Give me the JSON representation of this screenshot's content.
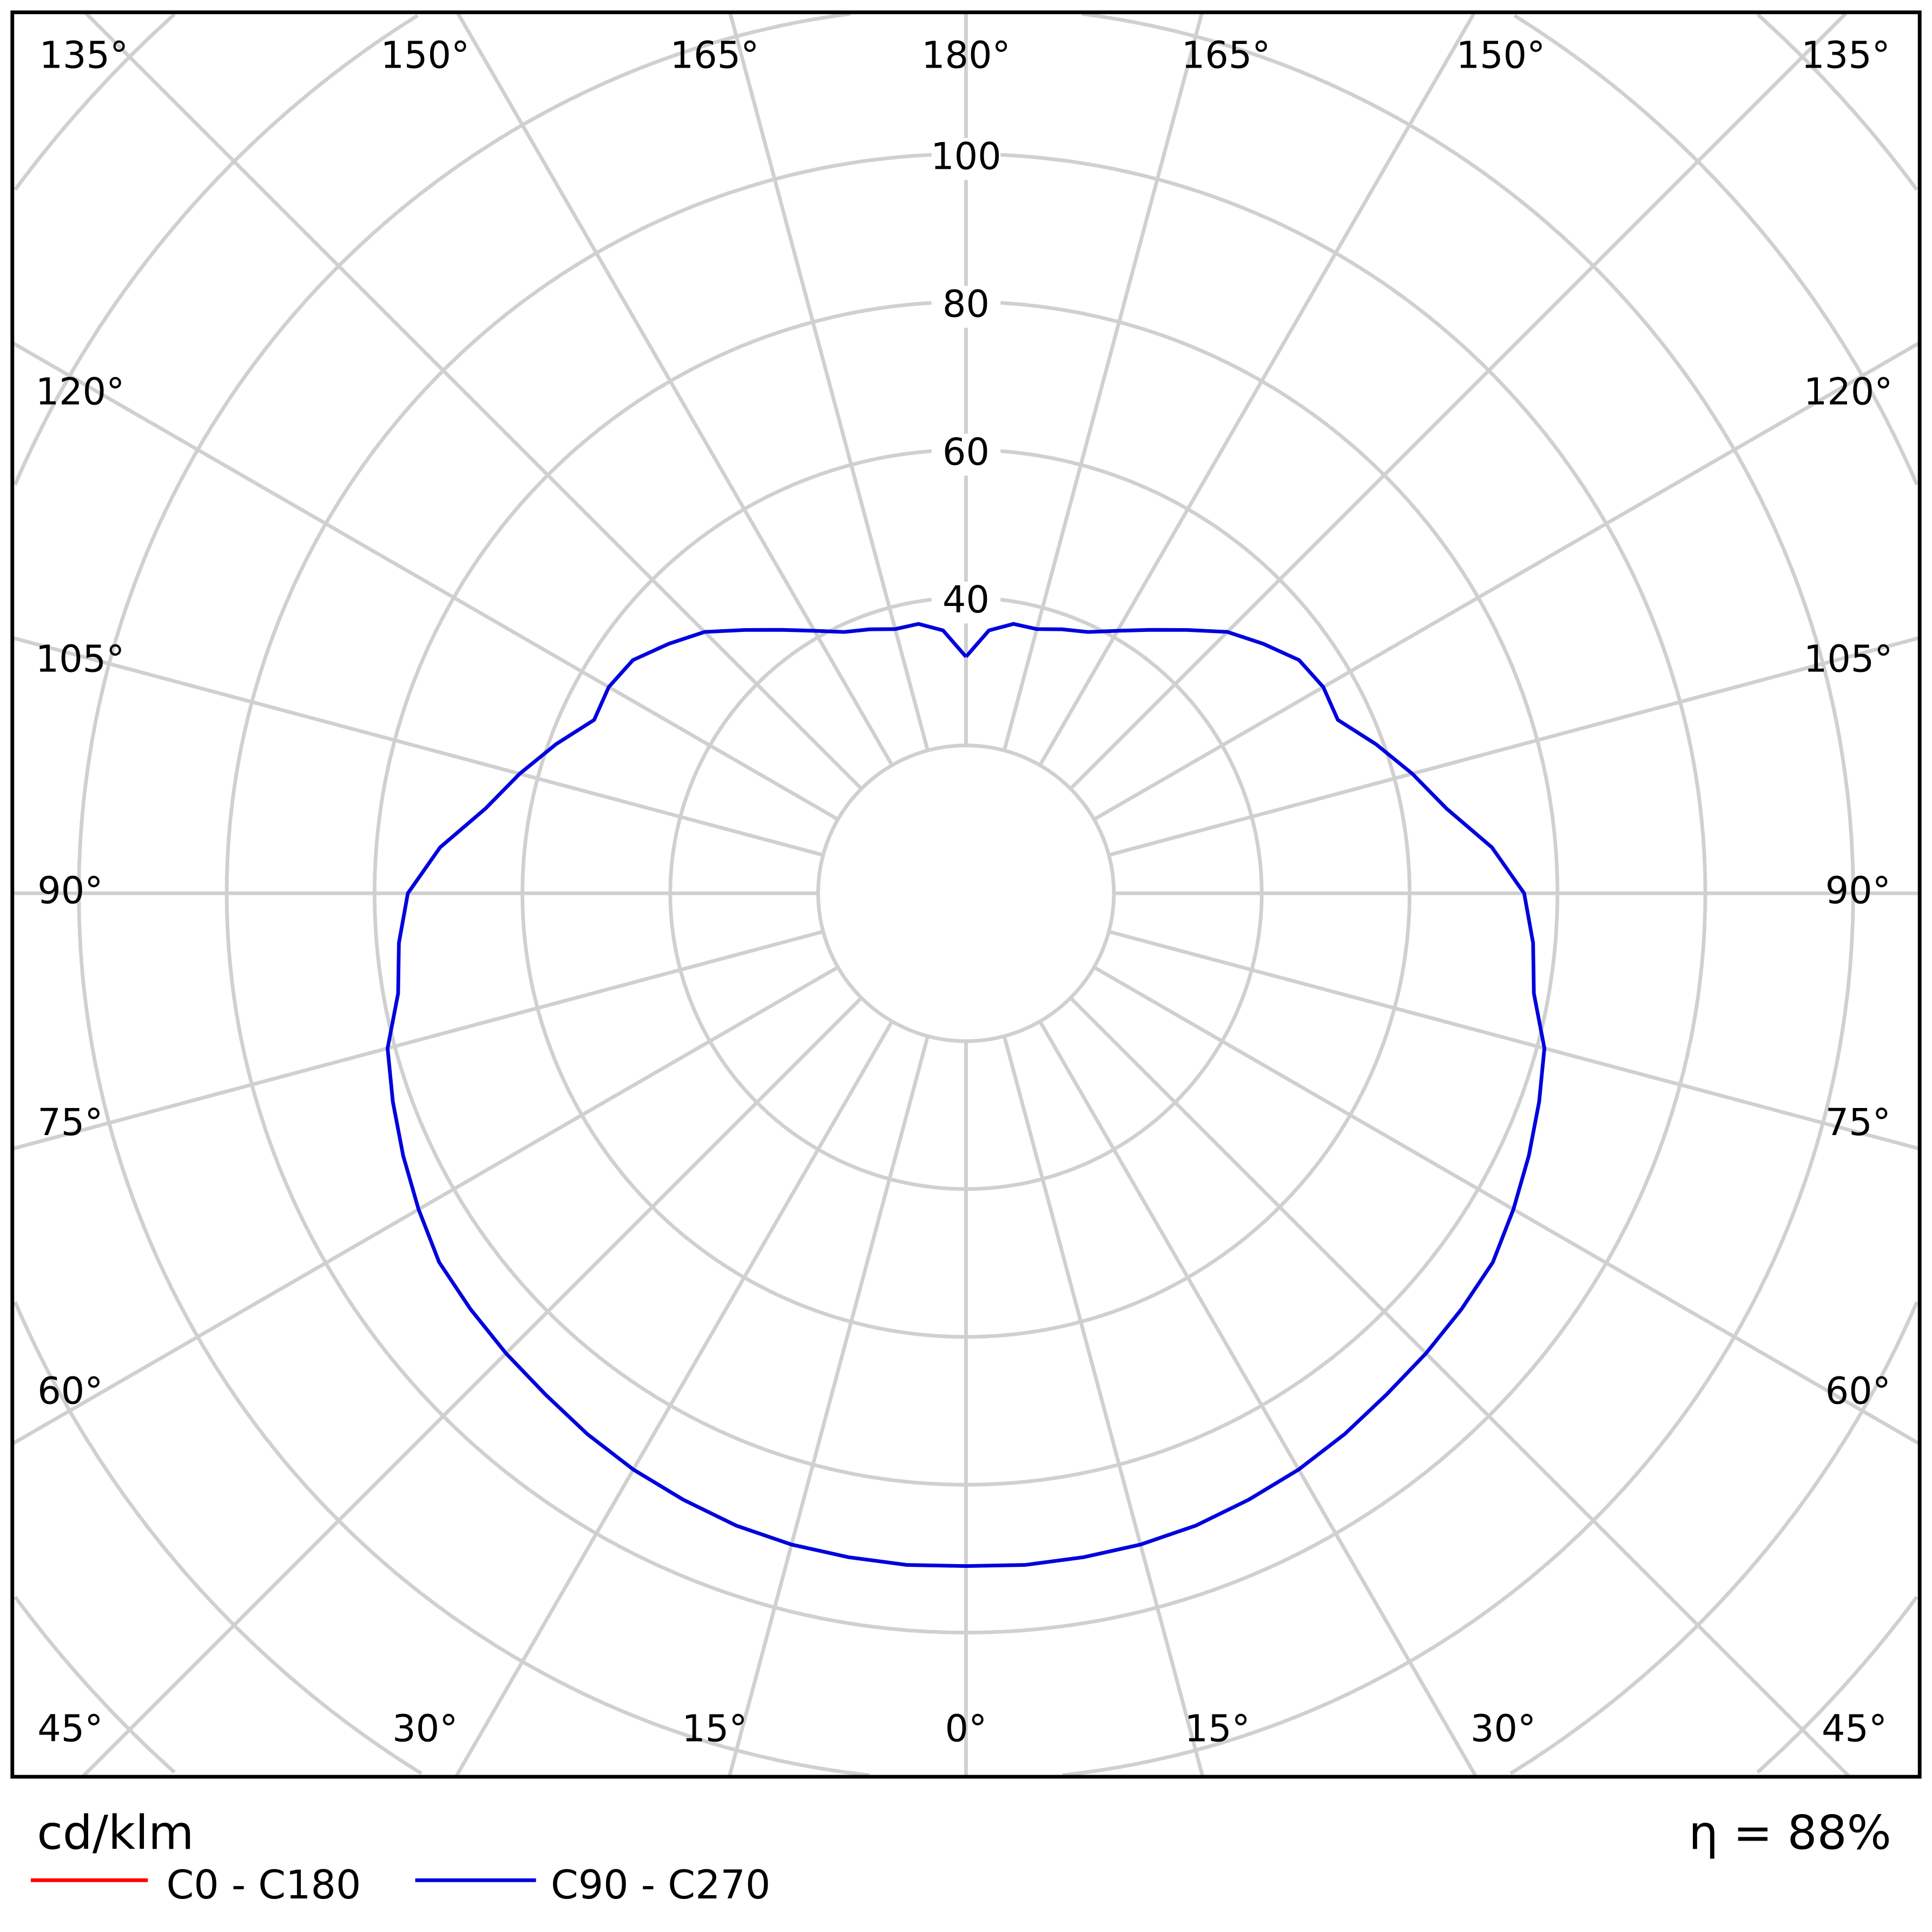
{
  "chart_data": {
    "type": "polar-line",
    "unit_label": "cd/klm",
    "efficiency_label": "η = 88%",
    "radial_ticks": [
      40,
      60,
      80,
      100
    ],
    "radial_range": [
      0,
      120
    ],
    "angle_labels": {
      "top": [
        "135°",
        "150°",
        "165°",
        "180°",
        "165°",
        "150°",
        "135°"
      ],
      "left": [
        "120°",
        "105°",
        "90°",
        "75°",
        "60°"
      ],
      "right": [
        "120°",
        "105°",
        "90°",
        "75°",
        "60°"
      ],
      "bottom": [
        "45°",
        "30°",
        "15°",
        "0°",
        "15°",
        "30°",
        "45°"
      ]
    },
    "grid": true,
    "legend_position": "bottom-left",
    "series": [
      {
        "name": "C0 - C180",
        "color": "#ff0000",
        "angles": [],
        "values": []
      },
      {
        "name": "C90 - C270",
        "color": "#0000dd",
        "angles": [
          0,
          5,
          10,
          15,
          20,
          25,
          30,
          35,
          40,
          45,
          50,
          55,
          60,
          65,
          70,
          75,
          80,
          85,
          90,
          95,
          100,
          105,
          110,
          115,
          120,
          125,
          130,
          135,
          140,
          145,
          150,
          155,
          160,
          165,
          170,
          175,
          180
        ],
        "values": [
          91,
          91.2,
          91.2,
          91.2,
          91,
          90.5,
          90,
          89.3,
          88.5,
          88,
          87.5,
          87,
          85.5,
          84,
          82.5,
          81,
          78,
          77,
          75.5,
          71.4,
          66,
          62.5,
          59,
          55.5,
          55.8,
          55,
          52.5,
          50,
          46.5,
          43.5,
          41,
          39,
          38,
          37,
          37,
          35.7,
          32
        ]
      }
    ]
  }
}
